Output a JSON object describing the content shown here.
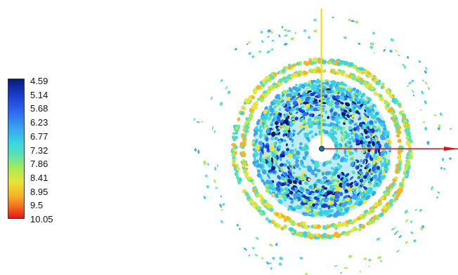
{
  "colorbar": {
    "labels": [
      "4.59",
      "5.14",
      "5.68",
      "6.23",
      "6.77",
      "7.32",
      "7.86",
      "8.41",
      "8.95",
      "9.5",
      "10.05"
    ],
    "min": 4.59,
    "max": 10.05,
    "colors": [
      "#0a1a7a",
      "#1a3fd0",
      "#2f6bf0",
      "#3aa6f2",
      "#39d6df",
      "#58e0b8",
      "#a8ea5a",
      "#e8e438",
      "#f6b22a",
      "#f06a1c",
      "#e51616"
    ]
  },
  "axes": {
    "x_axis_color": "#e01010",
    "y_axis_color": "#e8e000"
  }
}
